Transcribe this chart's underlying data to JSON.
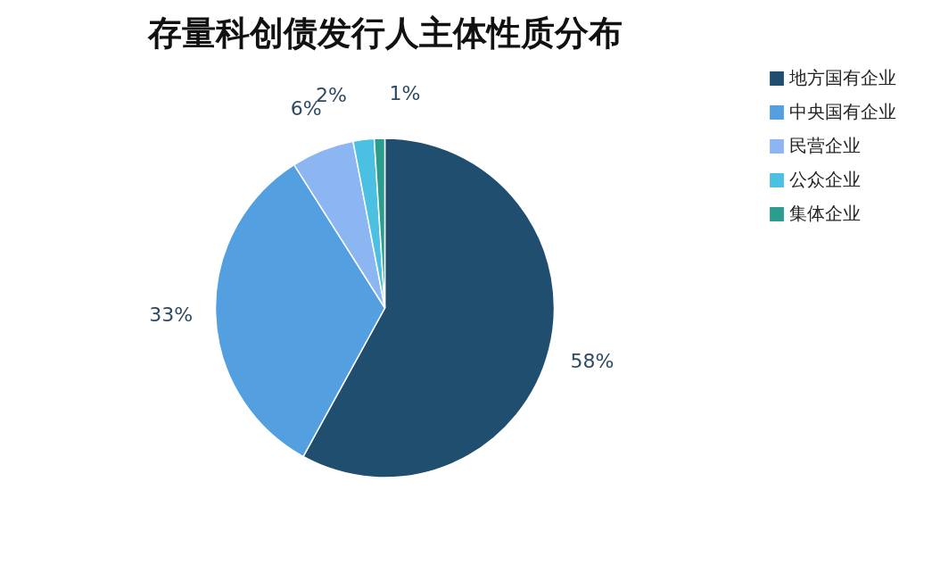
{
  "chart_data": {
    "type": "pie",
    "title": "存量科创债发行人主体性质分布",
    "categories": [
      "地方国有企业",
      "中央国有企业",
      "民营企业",
      "公众企业",
      "集体企业"
    ],
    "values": [
      58,
      33,
      6,
      2,
      1
    ],
    "colors": [
      "#1f4e6e",
      "#539fe0",
      "#8cb6f2",
      "#4cc0e2",
      "#2a9d8f"
    ],
    "value_labels": [
      "58%",
      "33%",
      "6%",
      "2%",
      "1%"
    ],
    "legend": "top right"
  }
}
